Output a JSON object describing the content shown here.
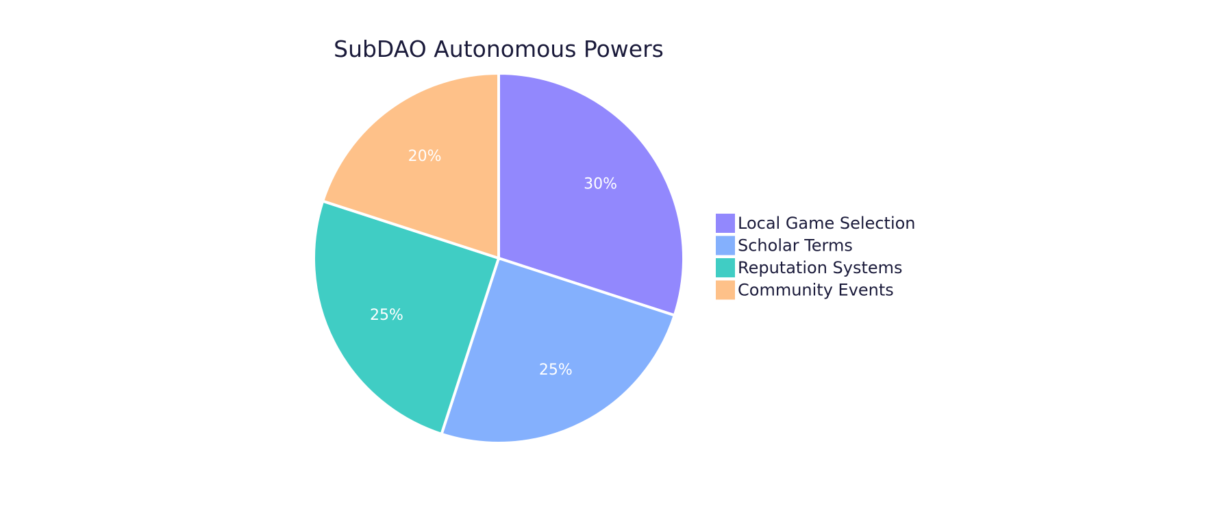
{
  "chart_data": {
    "type": "pie",
    "title": "SubDAO Autonomous Powers",
    "categories": [
      "Local Game Selection",
      "Scholar Terms",
      "Reputation Systems",
      "Community Events"
    ],
    "values": [
      30,
      25,
      25,
      20
    ],
    "labels": [
      "30%",
      "25%",
      "25%",
      "20%"
    ],
    "colors": [
      "#9288fd",
      "#84b0fd",
      "#40cdc4",
      "#fec189"
    ],
    "legend_position": "right",
    "start_angle": "12 o'clock",
    "direction": "clockwise"
  }
}
